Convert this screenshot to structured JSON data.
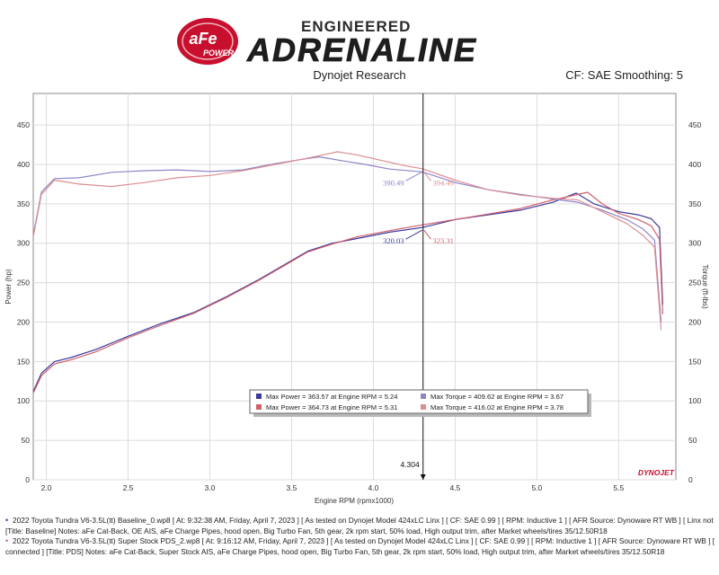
{
  "header": {
    "brand_badge": "aFe",
    "brand_badge_sub": "POWER",
    "tagline_top": "ENGINEERED",
    "tagline_main": "ADRENALINE",
    "subtitle": "Dynojet Research",
    "cf_text": "CF: SAE Smoothing: 5"
  },
  "colors": {
    "baseline": "#3c3a9c",
    "test": "#d0606c",
    "baseline_torque": "#8e86c8",
    "test_torque": "#dc8e92",
    "cursor": "#111111",
    "grid": "#dcdcdc",
    "dynojet_red": "#c8102e"
  },
  "chart_data": {
    "type": "line",
    "xlabel": "Engine RPM (rpmx1000)",
    "ylabel_left": "Power (hp)",
    "ylabel_right": "Torque (ft-lbs)",
    "xlim": [
      1.92,
      5.85
    ],
    "ylim": [
      0,
      490
    ],
    "xticks": [
      "2.0",
      "2.5",
      "3.0",
      "3.5",
      "4.0",
      "4.5",
      "5.0",
      "5.5"
    ],
    "xtick_values": [
      2.0,
      2.5,
      3.0,
      3.5,
      4.0,
      4.5,
      5.0,
      5.5
    ],
    "yticks": [
      "0",
      "50",
      "100",
      "150",
      "200",
      "250",
      "300",
      "350",
      "400",
      "450"
    ],
    "ytick_values": [
      0,
      50,
      100,
      150,
      200,
      250,
      300,
      350,
      400,
      450
    ],
    "grid": true,
    "watermark": "DYNOJET",
    "cursor": {
      "x": 4.304,
      "label": "4.304"
    },
    "cursor_labels": [
      {
        "text": "390.49",
        "x": 4.22,
        "y": 386,
        "series": "baseline_torque"
      },
      {
        "text": "394.49",
        "x": 4.33,
        "y": 386,
        "series": "test_torque"
      },
      {
        "text": "320.03",
        "x": 4.22,
        "y": 312,
        "series": "baseline"
      },
      {
        "text": "323.31",
        "x": 4.33,
        "y": 312,
        "series": "test"
      }
    ],
    "series": [
      {
        "key": "baseline_power",
        "color_key": "baseline",
        "x": [
          1.92,
          1.97,
          2.05,
          2.15,
          2.3,
          2.5,
          2.7,
          2.9,
          3.1,
          3.3,
          3.45,
          3.6,
          3.75,
          3.9,
          4.1,
          4.3,
          4.5,
          4.7,
          4.9,
          5.1,
          5.24,
          5.35,
          5.5,
          5.62,
          5.7,
          5.75,
          5.77
        ],
        "values": [
          112,
          135,
          150,
          155,
          165,
          182,
          198,
          212,
          232,
          254,
          272,
          290,
          300,
          306,
          314,
          320,
          330,
          336,
          342,
          352,
          363.6,
          350,
          340,
          336,
          331,
          320,
          222
        ]
      },
      {
        "key": "test_power",
        "color_key": "test",
        "x": [
          1.92,
          1.97,
          2.05,
          2.15,
          2.3,
          2.5,
          2.7,
          2.9,
          3.1,
          3.3,
          3.45,
          3.6,
          3.75,
          3.9,
          4.1,
          4.3,
          4.5,
          4.7,
          4.9,
          5.1,
          5.31,
          5.4,
          5.5,
          5.62,
          5.7,
          5.75,
          5.77
        ],
        "values": [
          110,
          132,
          147,
          152,
          162,
          180,
          196,
          211,
          231,
          253,
          271,
          289,
          299,
          308,
          316,
          323.3,
          330,
          337,
          344,
          355,
          364.7,
          350,
          338,
          330,
          322,
          305,
          210
        ]
      },
      {
        "key": "baseline_torque",
        "color_key": "baseline_torque",
        "x": [
          1.92,
          1.97,
          2.05,
          2.2,
          2.4,
          2.6,
          2.8,
          3.0,
          3.2,
          3.4,
          3.55,
          3.67,
          3.8,
          3.95,
          4.1,
          4.3,
          4.5,
          4.7,
          4.9,
          5.1,
          5.25,
          5.4,
          5.55,
          5.65,
          5.72,
          5.76
        ],
        "values": [
          310,
          365,
          382,
          383,
          390,
          392,
          393,
          391,
          393,
          401,
          406,
          409.6,
          405,
          400,
          394,
          390.5,
          377,
          368,
          362,
          356,
          352,
          342,
          330,
          318,
          304,
          200
        ]
      },
      {
        "key": "test_torque",
        "color_key": "test_torque",
        "x": [
          1.92,
          1.97,
          2.05,
          2.2,
          2.4,
          2.6,
          2.8,
          3.0,
          3.2,
          3.4,
          3.6,
          3.78,
          3.9,
          4.05,
          4.2,
          4.3,
          4.5,
          4.7,
          4.9,
          5.1,
          5.25,
          5.4,
          5.55,
          5.65,
          5.72,
          5.76
        ],
        "values": [
          308,
          362,
          380,
          375,
          372,
          377,
          383,
          386,
          392,
          400,
          408,
          416,
          412,
          405,
          398,
          394.5,
          380,
          368,
          361,
          357,
          355,
          340,
          325,
          310,
          295,
          190
        ]
      }
    ],
    "legend": [
      {
        "text": "Max Power = 363.57 at Engine RPM = 5.24",
        "color_key": "baseline"
      },
      {
        "text": "Max Torque = 409.62 at Engine RPM = 3.67",
        "color_key": "baseline_torque"
      },
      {
        "text": "Max Power = 364.73 at Engine RPM = 5.31",
        "color_key": "test"
      },
      {
        "text": "Max Torque = 416.02 at Engine RPM = 3.78",
        "color_key": "test_torque"
      }
    ]
  },
  "footer": {
    "line1": "2022 Toyota Tundra V6-3.5L(tt) Baseline_0.wp8 [ At: 9:32:38 AM, Friday, April 7, 2023 ] [ As tested on Dynojet Model 424xLC Linx ] [ CF: SAE 0.99 ] [ RPM: Inductive 1 ] [ AFR Source: Dynoware RT WB ] [ Linx not connected ]",
    "line2": "[Title: Baseline]  Notes: aFe Cat-Back, OE AIS, aFe Charge Pipes,  hood open, Big Turbo Fan, 5th gear, 2k rpm start, 50% load, High output trim, after Market wheels/tires 35/12.50R18",
    "line3": "2022 Toyota Tundra V6-3.5L(tt) Super Stock PDS_2.wp8 [ At: 9:16:12 AM, Friday, April 7, 2023 ] [ As tested on Dynojet Model 424xLC Linx ] [ CF: SAE 0.99 ] [ RPM: Inductive 1 ] [ AFR Source: Dynoware RT WB ] [ Linx not",
    "line4": "connected ] [Title: PDS]  Notes: aFe Cat-Back, Super Stock AIS, aFe Charge Pipes,  hood open, Big Turbo Fan, 5th gear, 2k rpm start, 50% load, High output trim, after Market wheels/tires 35/12.50R18"
  }
}
